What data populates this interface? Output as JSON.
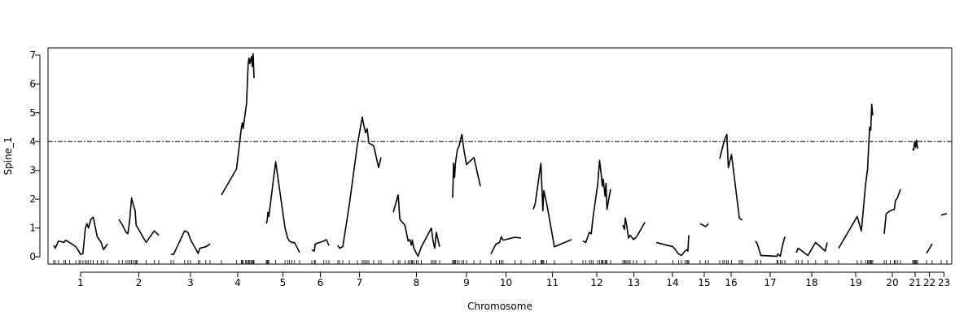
{
  "chart_data": {
    "type": "line",
    "title": "",
    "xlabel": "Chromosome",
    "ylabel": "Spine_1",
    "ylim": [
      -0.25,
      7.25
    ],
    "yticks": [
      0,
      1,
      2,
      3,
      4,
      5,
      6,
      7
    ],
    "threshold": 4.0,
    "grid": false,
    "chromosomes": [
      {
        "label": "1",
        "points": [
          [
            0,
            0.4
          ],
          [
            2,
            0.3
          ],
          [
            6,
            0.55
          ],
          [
            13,
            0.5
          ],
          [
            15,
            0.58
          ],
          [
            20,
            0.5
          ],
          [
            28,
            0.35
          ],
          [
            32,
            0.18
          ],
          [
            34,
            0.08
          ],
          [
            37,
            0.12
          ],
          [
            40,
            1.0
          ],
          [
            42,
            1.15
          ],
          [
            44,
            1.0
          ],
          [
            47,
            1.3
          ],
          [
            50,
            1.38
          ],
          [
            55,
            0.7
          ],
          [
            60,
            0.5
          ],
          [
            63,
            0.25
          ],
          [
            68,
            0.45
          ]
        ]
      },
      {
        "label": "2",
        "points": [
          [
            0,
            1.3
          ],
          [
            4,
            1.1
          ],
          [
            8,
            0.85
          ],
          [
            10,
            0.8
          ],
          [
            12,
            1.3
          ],
          [
            14,
            2.05
          ],
          [
            16,
            1.8
          ],
          [
            18,
            1.6
          ],
          [
            19,
            1.1
          ],
          [
            20,
            1.05
          ],
          [
            30,
            0.5
          ],
          [
            39,
            0.9
          ],
          [
            44,
            0.75
          ]
        ]
      },
      {
        "label": "3",
        "points": [
          [
            0,
            0.1
          ],
          [
            3,
            0.08
          ],
          [
            16,
            0.9
          ],
          [
            20,
            0.85
          ],
          [
            23,
            0.6
          ],
          [
            32,
            0.12
          ],
          [
            34,
            0.3
          ],
          [
            41,
            0.35
          ],
          [
            46,
            0.45
          ]
        ]
      },
      {
        "label": "4",
        "points": [
          [
            0,
            2.15
          ],
          [
            18,
            3.05
          ],
          [
            24,
            4.5
          ],
          [
            25,
            4.65
          ],
          [
            26,
            4.45
          ],
          [
            29,
            5.1
          ],
          [
            30,
            5.3
          ],
          [
            32,
            6.7
          ],
          [
            33,
            6.9
          ],
          [
            34,
            6.7
          ],
          [
            36,
            6.95
          ],
          [
            37,
            6.6
          ],
          [
            38,
            7.05
          ],
          [
            39,
            6.2
          ]
        ]
      },
      {
        "label": "5",
        "points": [
          [
            0,
            1.15
          ],
          [
            1,
            1.25
          ],
          [
            2,
            1.55
          ],
          [
            3,
            1.4
          ],
          [
            11,
            3.3
          ],
          [
            22,
            1.0
          ],
          [
            25,
            0.65
          ],
          [
            27,
            0.55
          ],
          [
            30,
            0.5
          ],
          [
            33,
            0.5
          ],
          [
            39,
            0.15
          ]
        ]
      },
      {
        "label": "6",
        "points": [
          [
            0,
            0.25
          ],
          [
            3,
            0.2
          ],
          [
            4,
            0.45
          ],
          [
            14,
            0.55
          ],
          [
            17,
            0.6
          ],
          [
            20,
            0.4
          ]
        ]
      },
      {
        "label": "7",
        "points": [
          [
            0,
            0.4
          ],
          [
            2,
            0.3
          ],
          [
            6,
            0.35
          ],
          [
            14,
            1.8
          ],
          [
            24,
            3.9
          ],
          [
            30,
            4.85
          ],
          [
            32,
            4.55
          ],
          [
            34,
            4.3
          ],
          [
            36,
            4.45
          ],
          [
            38,
            3.95
          ],
          [
            44,
            3.85
          ],
          [
            50,
            3.1
          ],
          [
            53,
            3.45
          ]
        ]
      },
      {
        "label": "8",
        "points": [
          [
            0,
            1.55
          ],
          [
            6,
            2.15
          ],
          [
            8,
            1.3
          ],
          [
            14,
            1.1
          ],
          [
            18,
            0.55
          ],
          [
            20,
            0.6
          ],
          [
            22,
            0.4
          ],
          [
            23,
            0.58
          ],
          [
            25,
            0.3
          ],
          [
            28,
            0.12
          ],
          [
            30,
            0.02
          ],
          [
            34,
            0.35
          ],
          [
            46,
            1.0
          ],
          [
            48,
            0.55
          ],
          [
            50,
            0.3
          ],
          [
            52,
            0.85
          ],
          [
            56,
            0.35
          ]
        ]
      },
      {
        "label": "9",
        "points": [
          [
            0,
            2.05
          ],
          [
            1,
            3.25
          ],
          [
            2,
            2.75
          ],
          [
            3,
            3.25
          ],
          [
            5,
            3.7
          ],
          [
            7,
            3.85
          ],
          [
            10,
            4.25
          ],
          [
            12,
            3.75
          ],
          [
            15,
            3.2
          ],
          [
            23,
            3.45
          ],
          [
            30,
            2.45
          ]
        ]
      },
      {
        "label": "10",
        "points": [
          [
            0,
            0.1
          ],
          [
            6,
            0.45
          ],
          [
            10,
            0.5
          ],
          [
            12,
            0.7
          ],
          [
            14,
            0.58
          ],
          [
            28,
            0.68
          ],
          [
            35,
            0.65
          ]
        ]
      },
      {
        "label": "11",
        "points": [
          [
            0,
            1.65
          ],
          [
            2,
            1.85
          ],
          [
            8,
            3.25
          ],
          [
            9,
            2.4
          ],
          [
            10,
            1.6
          ],
          [
            11,
            2.3
          ],
          [
            14,
            1.85
          ],
          [
            22,
            0.35
          ],
          [
            40,
            0.6
          ]
        ]
      },
      {
        "label": "12",
        "points": [
          [
            0,
            0.55
          ],
          [
            3,
            0.5
          ],
          [
            7,
            0.85
          ],
          [
            9,
            0.8
          ],
          [
            11,
            1.4
          ],
          [
            16,
            2.5
          ],
          [
            18,
            3.35
          ],
          [
            20,
            2.8
          ],
          [
            21,
            2.45
          ],
          [
            22,
            2.7
          ],
          [
            24,
            2.1
          ],
          [
            25,
            2.55
          ],
          [
            26,
            1.65
          ],
          [
            30,
            2.35
          ]
        ]
      },
      {
        "label": "13",
        "points": [
          [
            0,
            1.1
          ],
          [
            2,
            0.95
          ],
          [
            3,
            1.35
          ],
          [
            5,
            1.05
          ],
          [
            7,
            0.65
          ],
          [
            9,
            0.75
          ],
          [
            13,
            0.6
          ],
          [
            17,
            0.7
          ],
          [
            27,
            1.2
          ]
        ]
      },
      {
        "label": "14",
        "points": [
          [
            0,
            0.5
          ],
          [
            18,
            0.35
          ],
          [
            24,
            0.1
          ],
          [
            27,
            0.05
          ],
          [
            31,
            0.2
          ],
          [
            33,
            0.25
          ],
          [
            34,
            0.2
          ],
          [
            35,
            0.75
          ]
        ]
      },
      {
        "label": "15",
        "points": [
          [
            0,
            1.15
          ],
          [
            4,
            1.05
          ],
          [
            6,
            1.15
          ]
        ]
      },
      {
        "label": "16",
        "points": [
          [
            0,
            3.4
          ],
          [
            4,
            3.85
          ],
          [
            6,
            4.05
          ],
          [
            9,
            4.25
          ],
          [
            11,
            3.1
          ],
          [
            15,
            3.55
          ],
          [
            25,
            1.35
          ],
          [
            27,
            1.3
          ],
          [
            29,
            1.28
          ]
        ]
      },
      {
        "label": "17",
        "points": [
          [
            0,
            0.55
          ],
          [
            2,
            0.45
          ],
          [
            6,
            0.05
          ],
          [
            24,
            0.02
          ],
          [
            25,
            0.1
          ],
          [
            28,
            0.02
          ],
          [
            30,
            0.35
          ],
          [
            33,
            0.7
          ]
        ]
      },
      {
        "label": "18",
        "points": [
          [
            0,
            0.15
          ],
          [
            2,
            0.3
          ],
          [
            6,
            0.2
          ],
          [
            12,
            0.05
          ],
          [
            20,
            0.5
          ],
          [
            30,
            0.2
          ],
          [
            32,
            0.5
          ]
        ]
      },
      {
        "label": "19",
        "points": [
          [
            0,
            0.3
          ],
          [
            18,
            1.4
          ],
          [
            22,
            0.9
          ],
          [
            26,
            2.5
          ],
          [
            28,
            3.05
          ],
          [
            29,
            3.85
          ],
          [
            30,
            4.5
          ],
          [
            31,
            4.4
          ],
          [
            32,
            5.3
          ],
          [
            33,
            4.9
          ]
        ]
      },
      {
        "label": "20",
        "points": [
          [
            0,
            0.8
          ],
          [
            2,
            1.5
          ],
          [
            6,
            1.6
          ],
          [
            10,
            1.65
          ],
          [
            11,
            1.95
          ],
          [
            13,
            2.05
          ],
          [
            16,
            2.35
          ]
        ]
      },
      {
        "label": "21",
        "points": [
          [
            0,
            3.75
          ],
          [
            1,
            3.7
          ],
          [
            2,
            4.0
          ],
          [
            3,
            3.8
          ],
          [
            4,
            4.05
          ],
          [
            5,
            3.75
          ]
        ]
      },
      {
        "label": "22",
        "points": [
          [
            0,
            0.12
          ],
          [
            6,
            0.45
          ]
        ]
      },
      {
        "label": "23",
        "points": [
          [
            0,
            1.45
          ],
          [
            6,
            1.5
          ]
        ]
      }
    ]
  }
}
